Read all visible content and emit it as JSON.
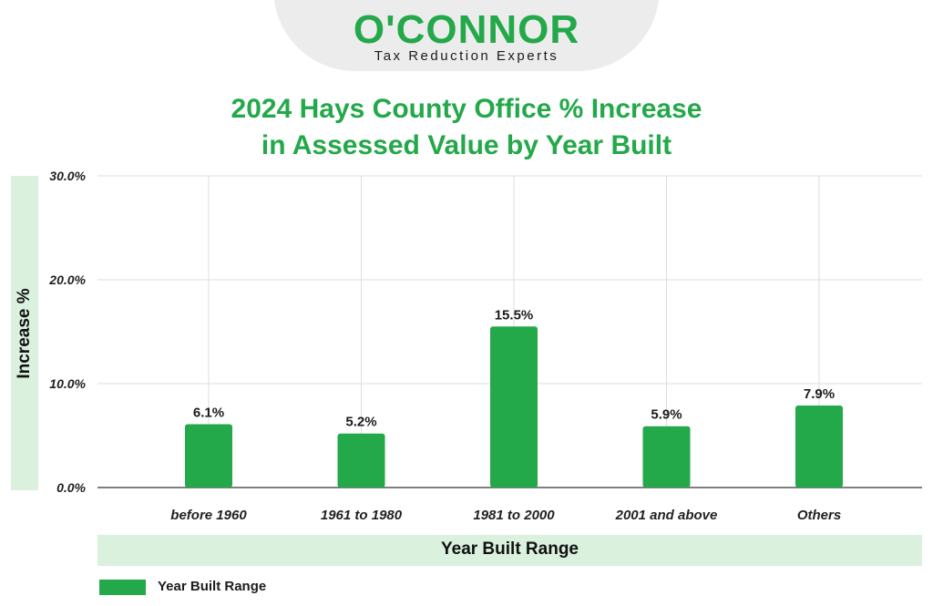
{
  "logo": {
    "wordmark": "O'CONNOR",
    "tagline": "Tax Reduction Experts"
  },
  "colors": {
    "brand_green": "#23a84a",
    "band_green": "#d9f1dd",
    "grid": "#dddddd",
    "axis": "#555555"
  },
  "chart_data": {
    "type": "bar",
    "title_lines": [
      "2024 Hays County Office % Increase",
      "in Assessed Value by Year Built"
    ],
    "xlabel": "Year Built Range",
    "ylabel": "Increase %",
    "categories": [
      "before 1960",
      "1961 to 1980",
      "1981 to 2000",
      "2001 and above",
      "Others"
    ],
    "series": [
      {
        "name": "Year Built Range",
        "values": [
          6.1,
          5.2,
          15.5,
          5.9,
          7.9
        ]
      }
    ],
    "data_labels": [
      "6.1%",
      "5.2%",
      "15.5%",
      "5.9%",
      "7.9%"
    ],
    "y_ticks": [
      0,
      10,
      20,
      30
    ],
    "y_tick_labels": [
      "0.0%",
      "10.0%",
      "20.0%",
      "30.0%"
    ],
    "ylim": [
      0,
      30
    ],
    "grid": true,
    "legend_position": "bottom-left"
  }
}
